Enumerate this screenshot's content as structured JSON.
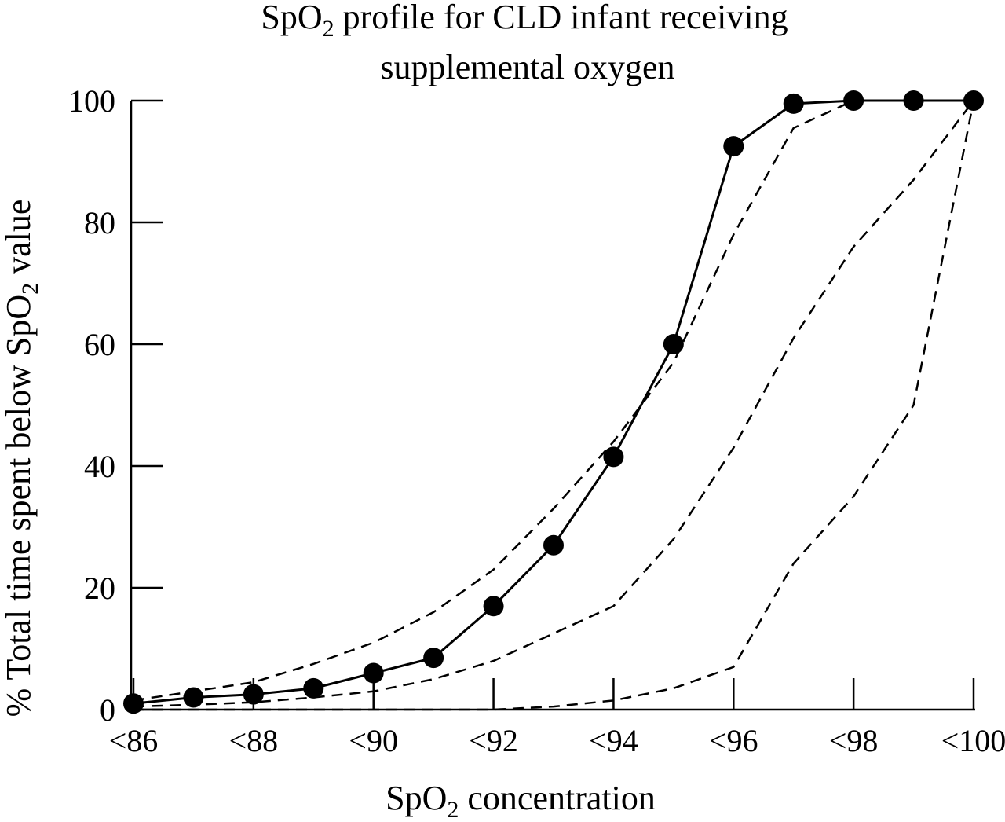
{
  "chart_data": {
    "type": "line",
    "title": {
      "line1_pre": "SpO",
      "line1_sub": "2",
      "line1_post": " profile for CLD infant receiving",
      "line2": "supplemental oxygen"
    },
    "xlabel": {
      "pre": "SpO",
      "sub": "2",
      "post": " concentration"
    },
    "ylabel": {
      "pre": "% Total time spent below SpO",
      "sub": "2",
      "post": " value"
    },
    "x": [
      86,
      87,
      88,
      89,
      90,
      91,
      92,
      93,
      94,
      95,
      96,
      97,
      98,
      99,
      100
    ],
    "x_tick_values": [
      86,
      88,
      90,
      92,
      94,
      96,
      98,
      100
    ],
    "x_tick_labels": [
      "<86",
      "<88",
      "<90",
      "<92",
      "<94",
      "<96",
      "<98",
      "<100"
    ],
    "y_tick_values": [
      0,
      20,
      40,
      60,
      80,
      100
    ],
    "y_tick_labels": [
      "0",
      "20",
      "40",
      "60",
      "80",
      "100"
    ],
    "xlim": [
      86,
      100
    ],
    "ylim": [
      0,
      100
    ],
    "grid": false,
    "series": [
      {
        "style": "solid-markers",
        "color": "#000000",
        "values": [
          1,
          2,
          2.5,
          3.5,
          6,
          8.5,
          17,
          27,
          41.5,
          60,
          92.5,
          99.5,
          100,
          100,
          100
        ]
      },
      {
        "style": "dashed",
        "color": "#000000",
        "values": [
          1.5,
          3,
          4.5,
          7.5,
          11,
          16,
          23,
          33,
          44,
          57,
          78,
          95.5,
          100,
          100,
          100
        ]
      },
      {
        "style": "dashed",
        "color": "#000000",
        "values": [
          0.5,
          0.8,
          1.2,
          2,
          3,
          5,
          8,
          12.5,
          17,
          28,
          43,
          61,
          76,
          87,
          100
        ]
      },
      {
        "style": "dashed",
        "color": "#000000",
        "values": [
          0,
          0,
          0,
          0,
          0,
          0,
          0,
          0.5,
          1.5,
          3.5,
          7,
          24,
          35,
          50,
          100
        ]
      }
    ]
  }
}
